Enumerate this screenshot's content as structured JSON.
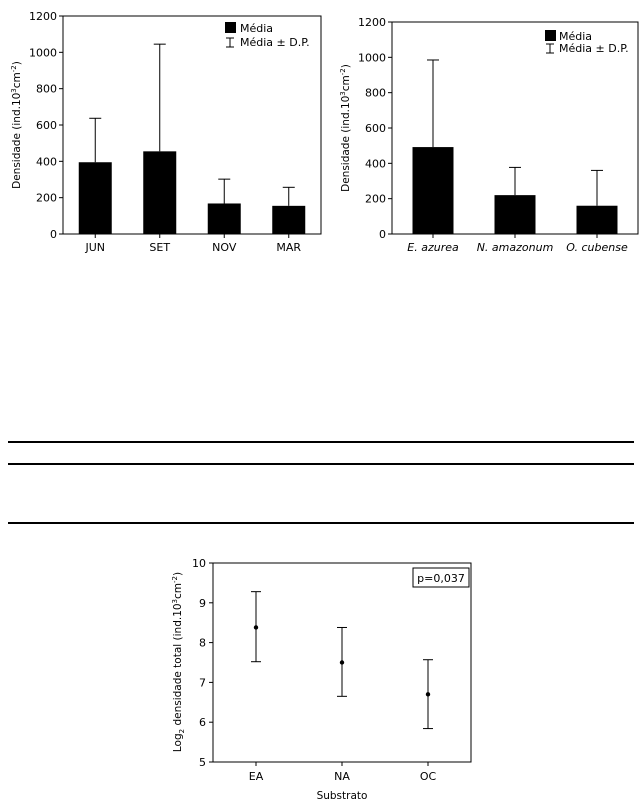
{
  "colors": {
    "bar": "#000000",
    "axis": "#000000",
    "background": "#ffffff"
  },
  "chart_data": [
    {
      "type": "bar",
      "panel": "top-left",
      "categories": [
        "JUN",
        "SET",
        "NOV",
        "MAR"
      ],
      "series": [
        {
          "name": "Média",
          "values": [
            395,
            455,
            168,
            155
          ]
        }
      ],
      "error_upper": [
        637,
        1045,
        302,
        257
      ],
      "ylabel": "Densidade (ind.10",
      "ylabel_sup1": "3",
      "ylabel_mid": "cm",
      "ylabel_sup2": "-2",
      "ylabel_end": ")",
      "ylim": [
        0,
        1200
      ],
      "yticks": [
        0,
        200,
        400,
        600,
        800,
        1000,
        1200
      ],
      "legend": {
        "mean_label": "Média",
        "sd_label": "Média ± D.P.",
        "placement": "top-right"
      },
      "grid": false
    },
    {
      "type": "bar",
      "panel": "top-right",
      "categories": [
        "E. azurea",
        "N. amazonum",
        "O. cubense"
      ],
      "series": [
        {
          "name": "Média",
          "values": [
            492,
            220,
            160
          ]
        }
      ],
      "error_upper": [
        985,
        377,
        360
      ],
      "ylabel": "Densidade (ind.10",
      "ylabel_sup1": "3",
      "ylabel_mid": "cm",
      "ylabel_sup2": "-2",
      "ylabel_end": ")",
      "ylim": [
        0,
        1200
      ],
      "yticks": [
        0,
        200,
        400,
        600,
        800,
        1000,
        1200
      ],
      "legend": {
        "mean_label": "Média",
        "sd_label": "Média ± D.P.",
        "placement": "top-right"
      },
      "grid": false
    },
    {
      "type": "scatter",
      "panel": "bottom",
      "categories": [
        "EA",
        "NA",
        "OC"
      ],
      "means": [
        8.38,
        7.5,
        6.7
      ],
      "error_low": [
        7.52,
        6.65,
        5.84
      ],
      "error_high": [
        9.28,
        8.38,
        7.57
      ],
      "xlabel": "Substrato",
      "ylabel_pre": "Log",
      "ylabel_sub": "2",
      "ylabel_text": " densidade total (ind.10",
      "ylabel_sup1": "3",
      "ylabel_mid": "cm",
      "ylabel_sup2": "-2",
      "ylabel_end": ")",
      "ylim": [
        5,
        10
      ],
      "yticks": [
        5,
        6,
        7,
        8,
        9,
        10
      ],
      "annotation": "p=0,037",
      "grid": false
    }
  ]
}
